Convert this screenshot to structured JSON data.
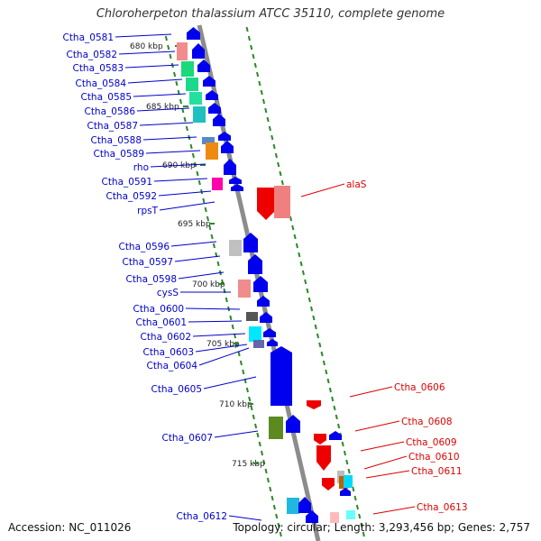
{
  "title": "Chloroherpeton thalassium ATCC 35110, complete genome",
  "footer": {
    "accession": "Accession: NC_011026",
    "topology": "Topology: circular; Length: 3,293,456 bp; Genes: 2,757"
  },
  "colors": {
    "backbone": "#8c8c8c",
    "tick": "#2a8a2a",
    "forward_label": "#0000cc",
    "reverse_label": "#dd0000",
    "forward_arrow": "#0000ee",
    "reverse_arrow": "#ee0000"
  },
  "kbp_ticks": [
    "680 kbp",
    "685 kbp",
    "690 kbp",
    "695 kbp",
    "700 kbp",
    "705 kbp",
    "710 kbp",
    "715 kbp"
  ],
  "forward_labels": [
    "Ctha_0581",
    "Ctha_0582",
    "Ctha_0583",
    "Ctha_0584",
    "Ctha_0585",
    "Ctha_0586",
    "Ctha_0587",
    "Ctha_0588",
    "Ctha_0589",
    "rho",
    "Ctha_0591",
    "Ctha_0592",
    "rpsT",
    "Ctha_0596",
    "Ctha_0597",
    "Ctha_0598",
    "cysS",
    "Ctha_0600",
    "Ctha_0601",
    "Ctha_0602",
    "Ctha_0603",
    "Ctha_0604",
    "Ctha_0605",
    "Ctha_0607",
    "Ctha_0612"
  ],
  "reverse_labels": [
    "alaS",
    "Ctha_0606",
    "Ctha_0608",
    "Ctha_0609",
    "Ctha_0610",
    "Ctha_0611",
    "Ctha_0613"
  ]
}
